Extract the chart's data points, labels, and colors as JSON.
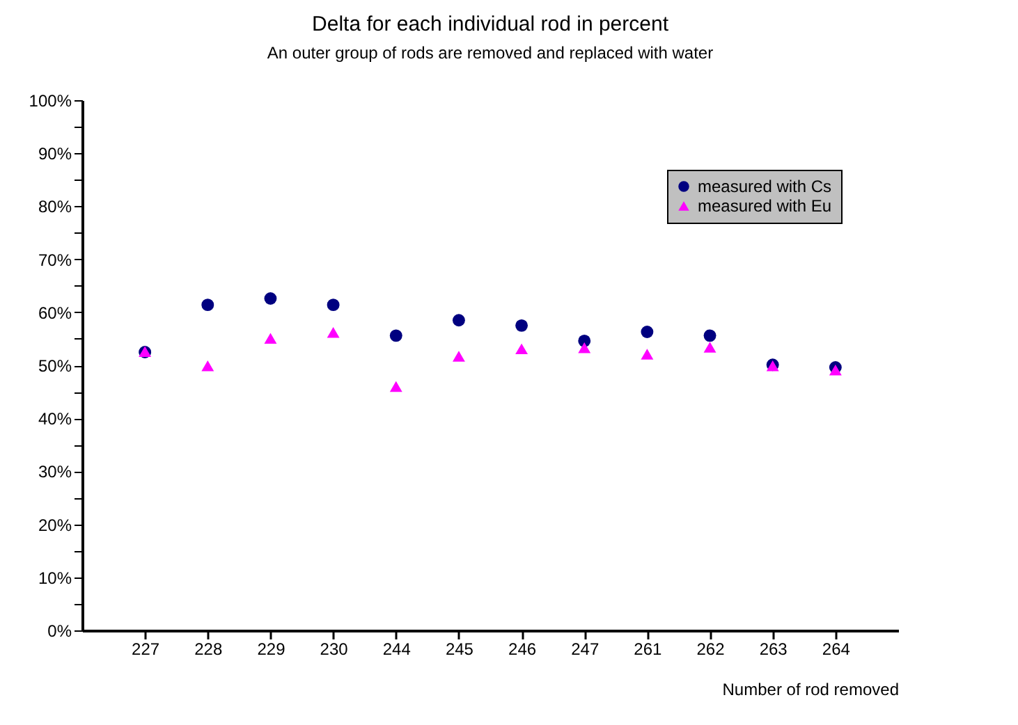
{
  "chart_data": {
    "type": "scatter",
    "title": "Delta for each individual rod in percent",
    "subtitle": "An outer group of rods are removed and replaced with water",
    "xlabel": "Number of rod removed",
    "categories": [
      "227",
      "228",
      "229",
      "230",
      "244",
      "245",
      "246",
      "247",
      "261",
      "262",
      "263",
      "264"
    ],
    "series": [
      {
        "name": "measured with Cs",
        "color": "#000080",
        "marker": "circle",
        "values": [
          52.5,
          61.4,
          62.6,
          61.4,
          55.6,
          58.5,
          57.5,
          54.6,
          56.3,
          55.6,
          50.1,
          49.6
        ]
      },
      {
        "name": "measured with Eu",
        "color": "#ff00ff",
        "marker": "triangle",
        "values": [
          52.6,
          49.9,
          55.1,
          56.2,
          46.0,
          51.7,
          53.1,
          53.3,
          52.1,
          53.4,
          49.9,
          49.1
        ]
      }
    ],
    "ylim": [
      0,
      100
    ],
    "yticks": [
      {
        "value": 0,
        "label": "0%"
      },
      {
        "value": 5,
        "label": null
      },
      {
        "value": 10,
        "label": "10%"
      },
      {
        "value": 15,
        "label": null
      },
      {
        "value": 20,
        "label": "20%"
      },
      {
        "value": 25,
        "label": null
      },
      {
        "value": 30,
        "label": "30%"
      },
      {
        "value": 35,
        "label": null
      },
      {
        "value": 40,
        "label": "40%"
      },
      {
        "value": 45,
        "label": null
      },
      {
        "value": 50,
        "label": "50%"
      },
      {
        "value": 55,
        "label": null
      },
      {
        "value": 60,
        "label": "60%"
      },
      {
        "value": 65,
        "label": null
      },
      {
        "value": 70,
        "label": "70%"
      },
      {
        "value": 75,
        "label": null
      },
      {
        "value": 80,
        "label": "80%"
      },
      {
        "value": 85,
        "label": null
      },
      {
        "value": 90,
        "label": "90%"
      },
      {
        "value": 95,
        "label": null
      },
      {
        "value": 100,
        "label": "100%"
      }
    ],
    "grid": false,
    "legend": "top right"
  }
}
